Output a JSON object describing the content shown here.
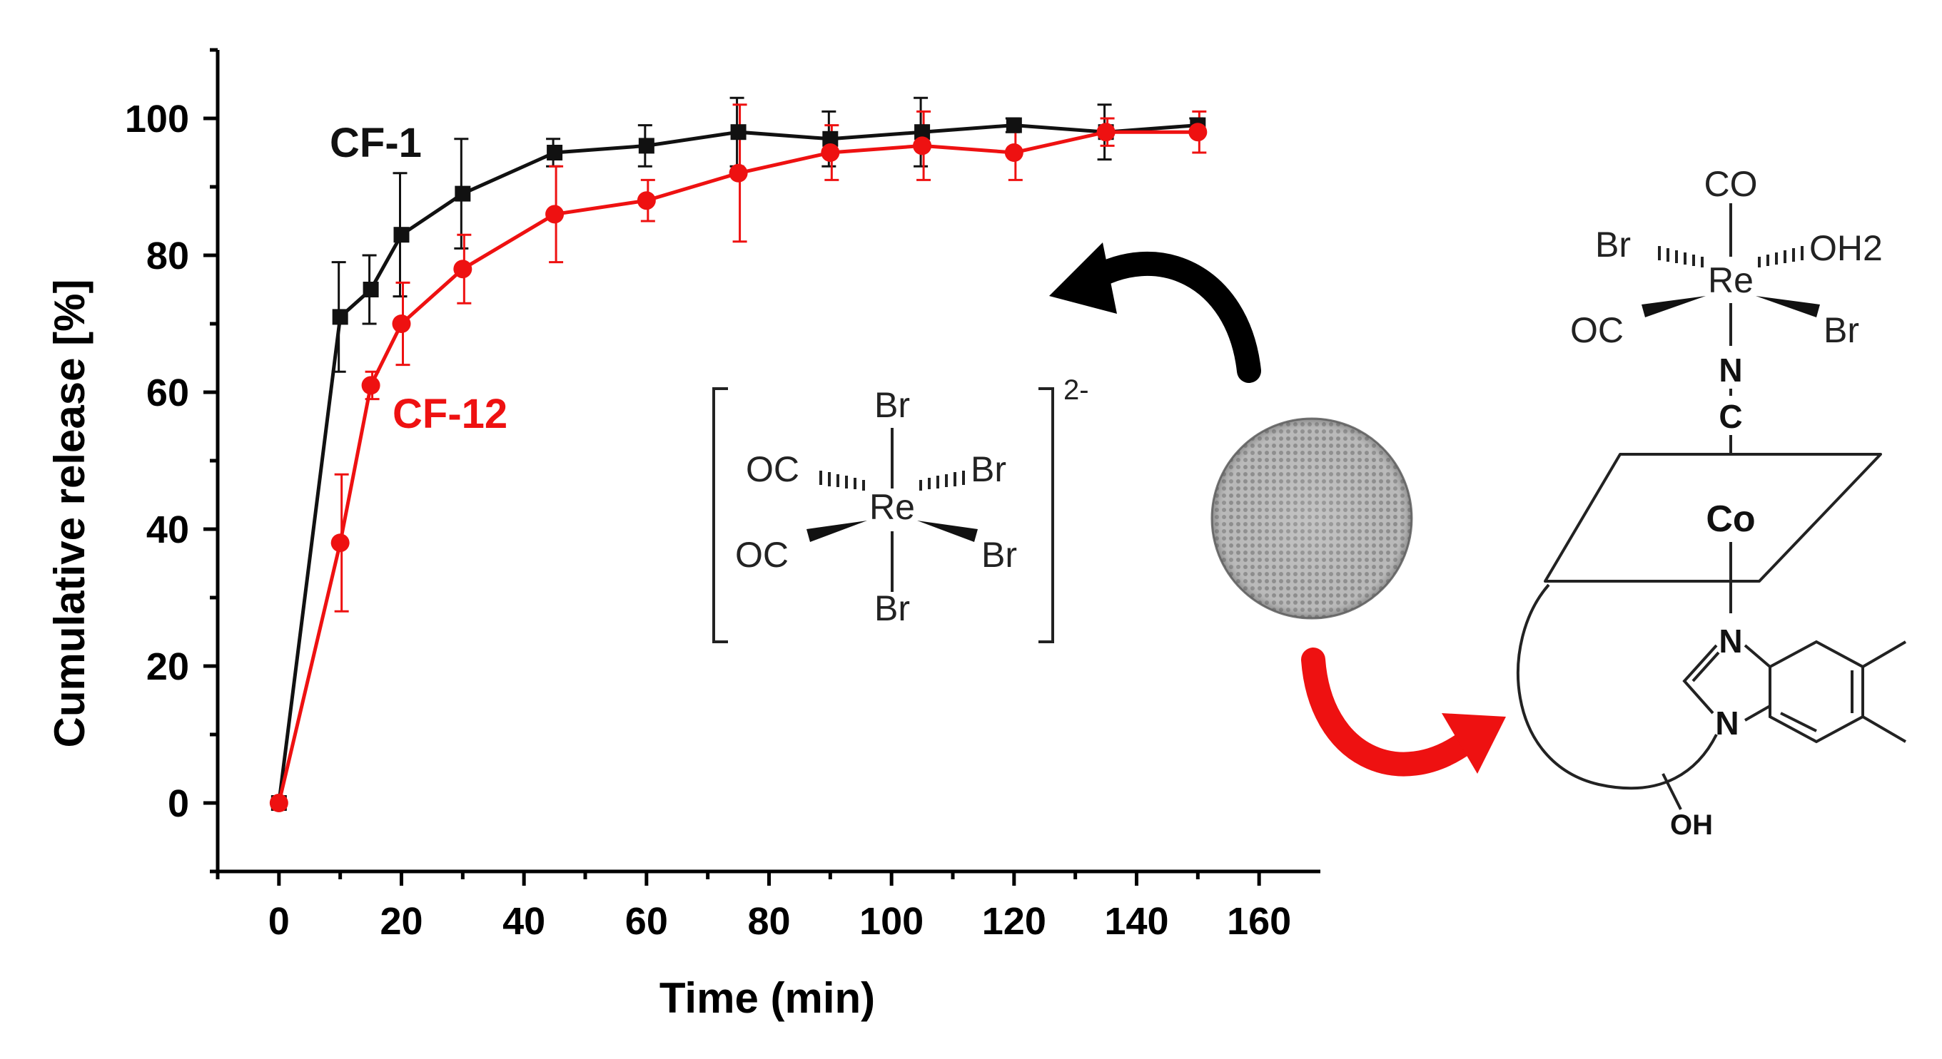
{
  "chart_data": {
    "type": "line",
    "xlabel": "Time (min)",
    "ylabel": "Cumulative release [%]",
    "xlim": [
      -10,
      170
    ],
    "ylim": [
      -10,
      110
    ],
    "xticks": [
      0,
      20,
      40,
      60,
      80,
      100,
      120,
      140,
      160
    ],
    "yticks": [
      0,
      20,
      40,
      60,
      80,
      100
    ],
    "grid": false,
    "x": [
      0,
      10,
      15,
      20,
      30,
      45,
      60,
      75,
      90,
      105,
      120,
      135,
      150
    ],
    "series": [
      {
        "name": "CF-1",
        "color": "#111111",
        "marker": "square",
        "values": [
          0,
          71,
          75,
          83,
          89,
          95,
          96,
          98,
          97,
          98,
          99,
          98,
          99
        ],
        "errors": [
          0,
          8,
          5,
          9,
          8,
          2,
          3,
          5,
          4,
          5,
          1,
          4,
          1
        ]
      },
      {
        "name": "CF-12",
        "color": "#ee1111",
        "marker": "circle",
        "values": [
          0,
          38,
          61,
          70,
          78,
          86,
          88,
          92,
          95,
          96,
          95,
          98,
          98
        ],
        "errors": [
          0,
          10,
          2,
          6,
          5,
          7,
          3,
          10,
          4,
          5,
          4,
          2,
          3
        ]
      }
    ]
  },
  "scheme": {
    "complex_anion": {
      "center": "Re",
      "ligands": [
        "Br",
        "Br",
        "Br",
        "Br",
        "OC",
        "OC"
      ],
      "charge": "2-"
    },
    "framework": {
      "labels": [
        "CO",
        "Br",
        "OH2",
        "Re",
        "OC",
        "Br",
        "N",
        "C",
        "Co",
        "N",
        "N",
        "OH"
      ]
    },
    "arrow_colors": [
      "#000000",
      "#ee1111"
    ]
  }
}
